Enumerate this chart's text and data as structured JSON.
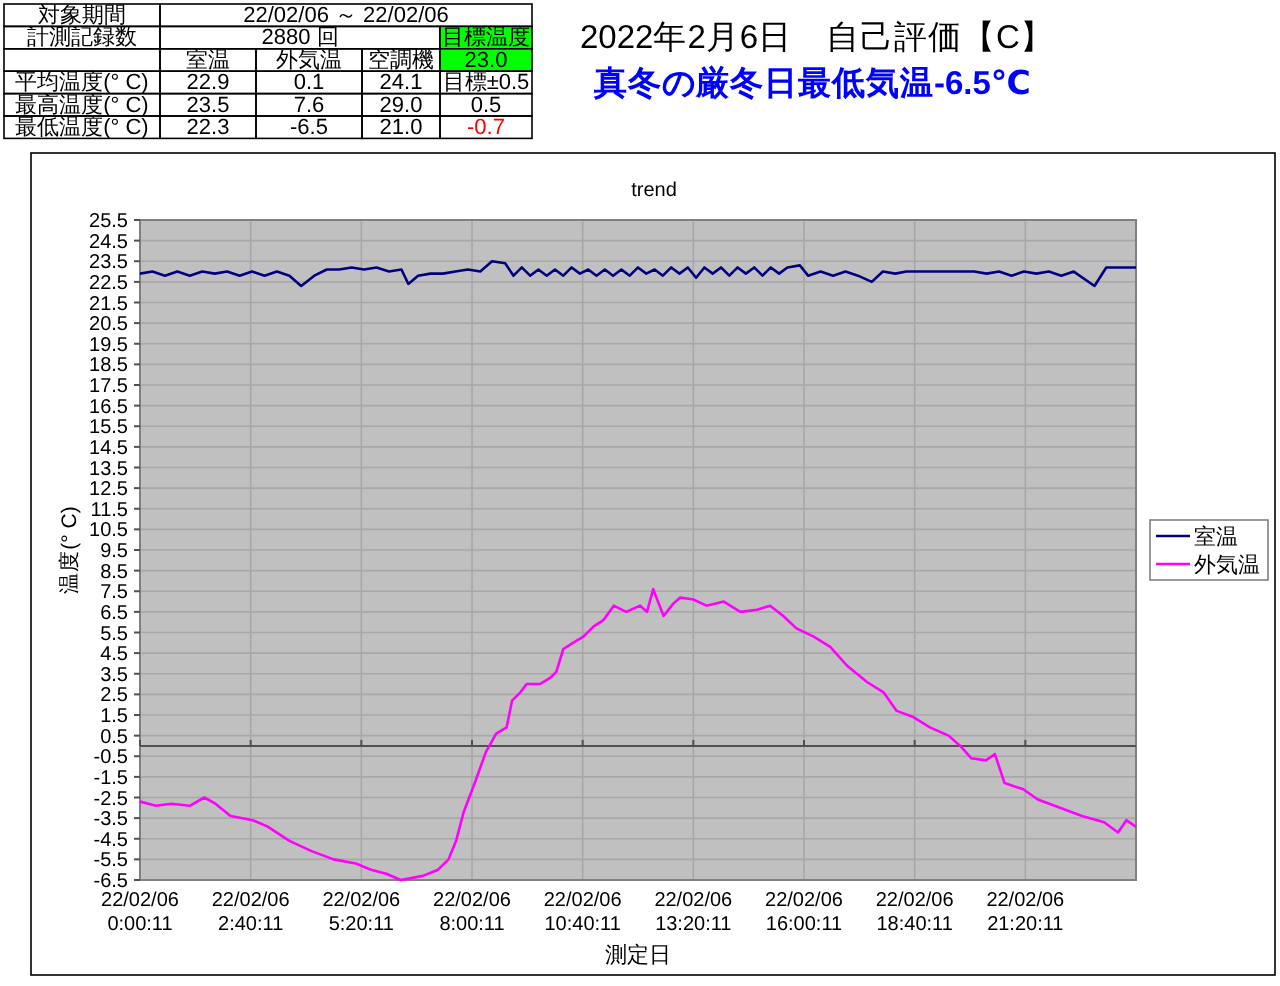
{
  "chart_data": {
    "type": "line",
    "title": "2022年2月6日　自己評価【C】",
    "subtitle": "真冬の厳冬日最低気温-6.5℃",
    "xlabel": "測定日",
    "ylabel": "温度(° C)",
    "annotations": [
      "trend",
      "対象期間",
      "22/02/06 ～ 22/02/06",
      "計測記録数",
      "2880 回",
      "目標温度",
      "室温",
      "外気温",
      "空調機",
      "23.0",
      "平均温度(° C)",
      "22.9",
      "0.1",
      "24.1",
      "目標±0.5",
      "最高温度(° C)",
      "23.5",
      "7.6",
      "29.0",
      "0.5",
      "最低温度(° C)",
      "22.3",
      "-6.5",
      "21.0",
      "-0.7"
    ],
    "xlim": [
      "2022-02-06T00:00",
      "2022-02-07T00:00"
    ],
    "xticks": [
      {
        "value": "2022-02-06T00:00",
        "label": "22/02/06\n0:00:11"
      },
      {
        "value": "2022-02-06T02:40",
        "label": "22/02/06\n2:40:11"
      },
      {
        "value": "2022-02-06T05:20",
        "label": "22/02/06\n5:20:11"
      },
      {
        "value": "2022-02-06T08:00",
        "label": "22/02/06\n8:00:11"
      },
      {
        "value": "2022-02-06T10:40",
        "label": "22/02/06\n10:40:11"
      },
      {
        "value": "2022-02-06T13:20",
        "label": "22/02/06\n13:20:11"
      },
      {
        "value": "2022-02-06T16:00",
        "label": "22/02/06\n16:00:11"
      },
      {
        "value": "2022-02-06T18:40",
        "label": "22/02/06\n18:40:11"
      },
      {
        "value": "2022-02-06T21:20",
        "label": "22/02/06\n21:20:11"
      }
    ],
    "ylim": [
      -6.5,
      25.5
    ],
    "yticks": [
      -6.5,
      -5.5,
      -4.5,
      -3.5,
      -2.5,
      -1.5,
      -0.5,
      0.5,
      1.5,
      2.5,
      3.5,
      4.5,
      5.5,
      6.5,
      7.5,
      8.5,
      9.5,
      10.5,
      11.5,
      12.5,
      13.5,
      14.5,
      15.5,
      16.5,
      17.5,
      18.5,
      19.5,
      20.5,
      21.5,
      22.5,
      23.5,
      24.5,
      25.5
    ],
    "grid": true,
    "legend": "right",
    "series": [
      {
        "name": "室温",
        "color": "#000080",
        "x": [
          "2022-02-06T00:00",
          "2022-02-06T00:18",
          "2022-02-06T00:36",
          "2022-02-06T00:54",
          "2022-02-06T01:12",
          "2022-02-06T01:30",
          "2022-02-06T01:48",
          "2022-02-06T02:06",
          "2022-02-06T02:24",
          "2022-02-06T02:42",
          "2022-02-06T03:00",
          "2022-02-06T03:18",
          "2022-02-06T03:36",
          "2022-02-06T03:53",
          "2022-02-06T04:12",
          "2022-02-06T04:30",
          "2022-02-06T04:48",
          "2022-02-06T05:06",
          "2022-02-06T05:24",
          "2022-02-06T05:42",
          "2022-02-06T06:00",
          "2022-02-06T06:18",
          "2022-02-06T06:28",
          "2022-02-06T06:42",
          "2022-02-06T07:00",
          "2022-02-06T07:18",
          "2022-02-06T07:36",
          "2022-02-06T07:54",
          "2022-02-06T08:12",
          "2022-02-06T08:29",
          "2022-02-06T08:48",
          "2022-02-06T09:00",
          "2022-02-06T09:12",
          "2022-02-06T09:24",
          "2022-02-06T09:36",
          "2022-02-06T09:48",
          "2022-02-06T10:00",
          "2022-02-06T10:12",
          "2022-02-06T10:24",
          "2022-02-06T10:36",
          "2022-02-06T10:48",
          "2022-02-06T11:00",
          "2022-02-06T11:12",
          "2022-02-06T11:24",
          "2022-02-06T11:36",
          "2022-02-06T11:48",
          "2022-02-06T12:00",
          "2022-02-06T12:12",
          "2022-02-06T12:24",
          "2022-02-06T12:36",
          "2022-02-06T12:48",
          "2022-02-06T13:00",
          "2022-02-06T13:12",
          "2022-02-06T13:24",
          "2022-02-06T13:36",
          "2022-02-06T13:48",
          "2022-02-06T14:00",
          "2022-02-06T14:12",
          "2022-02-06T14:24",
          "2022-02-06T14:36",
          "2022-02-06T14:48",
          "2022-02-06T15:00",
          "2022-02-06T15:12",
          "2022-02-06T15:24",
          "2022-02-06T15:36",
          "2022-02-06T15:54",
          "2022-02-06T16:06",
          "2022-02-06T16:24",
          "2022-02-06T16:42",
          "2022-02-06T17:00",
          "2022-02-06T17:18",
          "2022-02-06T17:38",
          "2022-02-06T17:54",
          "2022-02-06T18:12",
          "2022-02-06T18:28",
          "2022-02-06T19:00",
          "2022-02-06T19:30",
          "2022-02-06T20:06",
          "2022-02-06T20:24",
          "2022-02-06T20:42",
          "2022-02-06T21:00",
          "2022-02-06T21:18",
          "2022-02-06T21:36",
          "2022-02-06T21:54",
          "2022-02-06T22:12",
          "2022-02-06T22:30",
          "2022-02-06T23:00",
          "2022-02-06T23:17",
          "2022-02-06T23:46",
          "2022-02-06T23:59"
        ],
        "values": [
          22.9,
          23.0,
          22.8,
          23.0,
          22.8,
          23.0,
          22.9,
          23.0,
          22.8,
          23.0,
          22.8,
          23.0,
          22.8,
          22.3,
          22.8,
          23.1,
          23.1,
          23.2,
          23.1,
          23.2,
          23.0,
          23.1,
          22.4,
          22.8,
          22.9,
          22.9,
          23.0,
          23.1,
          23.0,
          23.5,
          23.4,
          22.8,
          23.2,
          22.8,
          23.1,
          22.8,
          23.1,
          22.8,
          23.2,
          22.9,
          23.1,
          22.8,
          23.1,
          22.8,
          23.1,
          22.8,
          23.2,
          22.9,
          23.1,
          22.8,
          23.2,
          22.9,
          23.2,
          22.7,
          23.2,
          22.9,
          23.2,
          22.8,
          23.2,
          22.9,
          23.2,
          22.8,
          23.2,
          22.9,
          23.2,
          23.3,
          22.8,
          23.0,
          22.8,
          23.0,
          22.8,
          22.5,
          23.0,
          22.9,
          23.0,
          23.0,
          23.0,
          23.0,
          22.9,
          23.0,
          22.8,
          23.0,
          22.9,
          23.0,
          22.8,
          23.0,
          22.3,
          23.2,
          23.2,
          23.2
        ]
      },
      {
        "name": "外気温",
        "color": "#ff00ff",
        "x": [
          "2022-02-06T00:00",
          "2022-02-06T00:23",
          "2022-02-06T00:45",
          "2022-02-06T01:12",
          "2022-02-06T01:33",
          "2022-02-06T01:49",
          "2022-02-06T02:11",
          "2022-02-06T02:43",
          "2022-02-06T03:04",
          "2022-02-06T03:36",
          "2022-02-06T04:08",
          "2022-02-06T04:40",
          "2022-02-06T05:12",
          "2022-02-06T05:34",
          "2022-02-06T05:56",
          "2022-02-06T06:17",
          "2022-02-06T06:49",
          "2022-02-06T07:11",
          "2022-02-06T07:26",
          "2022-02-06T07:37",
          "2022-02-06T07:48",
          "2022-02-06T08:04",
          "2022-02-06T08:20",
          "2022-02-06T08:35",
          "2022-02-06T08:50",
          "2022-02-06T08:58",
          "2022-02-06T09:10",
          "2022-02-06T09:19",
          "2022-02-06T09:38",
          "2022-02-06T09:53",
          "2022-02-06T10:02",
          "2022-02-06T10:12",
          "2022-02-06T10:26",
          "2022-02-06T10:41",
          "2022-02-06T10:56",
          "2022-02-06T11:10",
          "2022-02-06T11:25",
          "2022-02-06T11:43",
          "2022-02-06T12:03",
          "2022-02-06T12:13",
          "2022-02-06T12:22",
          "2022-02-06T12:37",
          "2022-02-06T12:51",
          "2022-02-06T13:01",
          "2022-02-06T13:20",
          "2022-02-06T13:39",
          "2022-02-06T14:04",
          "2022-02-06T14:28",
          "2022-02-06T14:52",
          "2022-02-06T15:11",
          "2022-02-06T15:30",
          "2022-02-06T15:49",
          "2022-02-06T16:14",
          "2022-02-06T16:38",
          "2022-02-06T17:02",
          "2022-02-06T17:31",
          "2022-02-06T17:55",
          "2022-02-06T18:14",
          "2022-02-06T18:38",
          "2022-02-06T19:02",
          "2022-02-06T19:29",
          "2022-02-06T19:46",
          "2022-02-06T20:02",
          "2022-02-06T20:23",
          "2022-02-06T20:36",
          "2022-02-06T20:50",
          "2022-02-06T21:17",
          "2022-02-06T21:38",
          "2022-02-06T22:10",
          "2022-02-06T22:42",
          "2022-02-06T23:14",
          "2022-02-06T23:34",
          "2022-02-06T23:46",
          "2022-02-06T23:59"
        ],
        "values": [
          -2.7,
          -2.9,
          -2.8,
          -2.9,
          -2.5,
          -2.8,
          -3.4,
          -3.6,
          -3.9,
          -4.6,
          -5.1,
          -5.5,
          -5.7,
          -6.0,
          -6.2,
          -6.5,
          -6.3,
          -6.0,
          -5.5,
          -4.6,
          -3.2,
          -1.8,
          -0.3,
          0.6,
          0.9,
          2.2,
          2.6,
          3.0,
          3.0,
          3.3,
          3.6,
          4.7,
          5.0,
          5.3,
          5.8,
          6.1,
          6.8,
          6.5,
          6.8,
          6.5,
          7.6,
          6.3,
          6.9,
          7.2,
          7.1,
          6.8,
          7.0,
          6.5,
          6.6,
          6.8,
          6.3,
          5.7,
          5.3,
          4.8,
          3.9,
          3.1,
          2.6,
          1.7,
          1.4,
          0.9,
          0.5,
          0.0,
          -0.6,
          -0.7,
          -0.4,
          -1.8,
          -2.1,
          -2.6,
          -3.0,
          -3.4,
          -3.7,
          -4.2,
          -3.6,
          -3.9
        ]
      }
    ]
  }
}
